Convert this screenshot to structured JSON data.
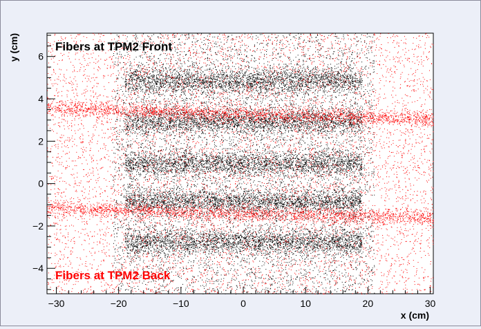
{
  "chart_data": {
    "type": "scatter",
    "title": "",
    "xlabel": "x (cm)",
    "ylabel": "y (cm)",
    "xlim": [
      -31.5,
      30.5
    ],
    "ylim": [
      -5.2,
      7.1
    ],
    "xticks": [
      -30,
      -20,
      -10,
      0,
      10,
      20,
      30
    ],
    "yticks": [
      -4,
      -2,
      0,
      2,
      4,
      6
    ],
    "grid": false,
    "annotations": [
      {
        "text": "Fibers at TPM2 Front",
        "color": "#000000"
      },
      {
        "text": "Fibers at TPM2 Back",
        "color": "#ff0000"
      }
    ],
    "series": [
      {
        "color": "#000000",
        "description_bands_center_y": [
          4.85,
          2.95,
          0.95,
          -0.85,
          -2.75
        ],
        "band_x_range": [
          -19,
          19
        ],
        "background_x_range": [
          -21,
          21
        ],
        "band_half_width_y": 0.55
      },
      {
        "color": "#ff0000",
        "description_bands_center_y": [
          3.3,
          -1.4
        ],
        "band_slope_per_cm": -0.008,
        "band_x_range": [
          -31.5,
          30.5
        ],
        "band_half_width_y": 0.3
      }
    ]
  }
}
